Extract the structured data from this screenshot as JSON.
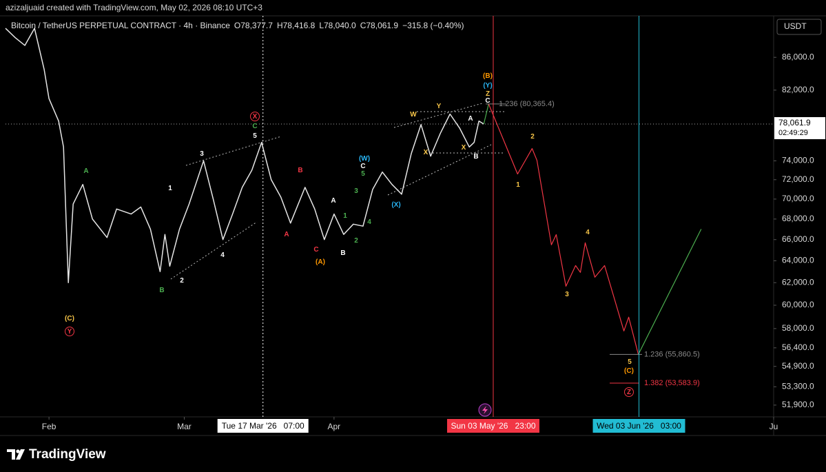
{
  "header": "azizaljuaid created with TradingView.com, May 02, 2026 08:10 UTC+3",
  "brand": "TradingView",
  "chart_data": {
    "type": "line",
    "title": "Bitcoin / TetherUS PERPETUAL CONTRACT · 4h · Binance",
    "ohlc": [
      "O78,377.7",
      "H78,416.8",
      "L78,040.0",
      "C78,061.9",
      "−315.8 (−0.40%)"
    ],
    "currency": "USDT",
    "log_scale": true,
    "grid": false,
    "xlim": [
      "2026-01-23",
      "2026-07-01"
    ],
    "ylim": [
      51020,
      91340
    ],
    "xticks": [
      {
        "value": "2026-02-01",
        "label": "Feb"
      },
      {
        "value": "2026-03-01",
        "label": "Mar"
      },
      {
        "value": "2026-04-01",
        "label": "Apr"
      },
      {
        "value": "2026-07-01",
        "label": "Ju"
      }
    ],
    "yticks": [
      {
        "value": 86000,
        "label": "86,000.0"
      },
      {
        "value": 82000,
        "label": "82,000.0"
      },
      {
        "value": 74000,
        "label": "74,000.0"
      },
      {
        "value": 72000,
        "label": "72,000.0"
      },
      {
        "value": 70000,
        "label": "70,000.0"
      },
      {
        "value": 68000,
        "label": "68,000.0"
      },
      {
        "value": 66000,
        "label": "66,000.0"
      },
      {
        "value": 64000,
        "label": "64,000.0"
      },
      {
        "value": 62000,
        "label": "62,000.0"
      },
      {
        "value": 60000,
        "label": "60,000.0"
      },
      {
        "value": 58000,
        "label": "58,000.0"
      },
      {
        "value": 56400,
        "label": "56,400.0"
      },
      {
        "value": 54900,
        "label": "54,900.0"
      },
      {
        "value": 53300,
        "label": "53,300.0"
      },
      {
        "value": 51900,
        "label": "51,900.0"
      }
    ],
    "last_price": {
      "value": 78061.9,
      "label": "78,061.9"
    },
    "countdown": "02:49:29",
    "series": [
      {
        "color": "#e6e6e6",
        "x": [
          "2026-01-23",
          "2026-01-25",
          "2026-01-27",
          "2026-01-29",
          "2026-01-31",
          "2026-02-01",
          "2026-02-03",
          "2026-02-04",
          "2026-02-05",
          "2026-02-06",
          "2026-02-08",
          "2026-02-10",
          "2026-02-13",
          "2026-02-15",
          "2026-02-18",
          "2026-02-20",
          "2026-02-22",
          "2026-02-24",
          "2026-02-25",
          "2026-02-26",
          "2026-02-28",
          "2026-03-02",
          "2026-03-05",
          "2026-03-07",
          "2026-03-09",
          "2026-03-11",
          "2026-03-13",
          "2026-03-15",
          "2026-03-17",
          "2026-03-19",
          "2026-03-21",
          "2026-03-23",
          "2026-03-26",
          "2026-03-28",
          "2026-03-30",
          "2026-04-01",
          "2026-04-03",
          "2026-04-05",
          "2026-04-07",
          "2026-04-09",
          "2026-04-11",
          "2026-04-13",
          "2026-04-15",
          "2026-04-17",
          "2026-04-19",
          "2026-04-21",
          "2026-04-23",
          "2026-04-25",
          "2026-04-27",
          "2026-04-29",
          "2026-04-30",
          "2026-05-01",
          "2026-05-02"
        ],
        "values": [
          89700,
          88500,
          87500,
          89700,
          84500,
          81000,
          78400,
          75500,
          62000,
          69500,
          71500,
          68000,
          66200,
          69000,
          68500,
          69200,
          67000,
          63000,
          66500,
          63500,
          67000,
          69500,
          74000,
          70000,
          66000,
          68500,
          71200,
          73000,
          76000,
          72000,
          70200,
          67600,
          71200,
          69000,
          66000,
          68500,
          66500,
          67500,
          67300,
          71000,
          72800,
          71500,
          70500,
          74800,
          78000,
          74500,
          77000,
          79200,
          77600,
          75500,
          76000,
          78400,
          78061.9
        ]
      },
      {
        "color": "#4caf50",
        "x": [
          "2026-05-02",
          "2026-05-03"
        ],
        "values": [
          78061.9,
          80365.4
        ]
      },
      {
        "color": "#f23645",
        "x": [
          "2026-05-03",
          "2026-05-09",
          "2026-05-12",
          "2026-05-13",
          "2026-05-16",
          "2026-05-17",
          "2026-05-19",
          "2026-05-21",
          "2026-05-22",
          "2026-05-23",
          "2026-05-25",
          "2026-05-27",
          "2026-05-31",
          "2026-06-01",
          "2026-06-03"
        ],
        "values": [
          80365.4,
          72600,
          75330,
          74050,
          65500,
          66480,
          61680,
          63560,
          62930,
          65690,
          62490,
          63560,
          57800,
          58970,
          55860.5
        ]
      },
      {
        "color": "#4caf50",
        "x": [
          "2026-06-03",
          "2026-06-16"
        ],
        "values": [
          55860.5,
          67010
        ]
      }
    ],
    "fib_levels": [
      {
        "value": 80365.4,
        "label": "1.236 (80,365.4)",
        "color": "#8a8a8a"
      },
      {
        "value": 55860.5,
        "label": "1.236 (55,860.5)",
        "color": "#8a8a8a"
      },
      {
        "value": 53583.9,
        "label": "1.382 (53,583.9)",
        "color": "#f23645"
      }
    ],
    "markers": [
      {
        "x": "2026-03-17T07:00",
        "label": "Tue 17 Mar '26   07:00",
        "color": "#ffffff"
      },
      {
        "x": "2026-05-03T23:00",
        "label": "Sun 03 May '26   23:00",
        "color": "#f23645"
      },
      {
        "x": "2026-06-03T03:00",
        "label": "Wed 03 Jun '26   03:00",
        "color": "#22bcd3"
      }
    ],
    "wave_labels": [
      {
        "text": "(C)",
        "color": "#f7c548"
      },
      {
        "text": "Y",
        "color": "#f23645"
      },
      {
        "text": "A",
        "color": "#4caf50"
      },
      {
        "text": "B",
        "color": "#4caf50"
      },
      {
        "text": "1",
        "color": "#ffffff"
      },
      {
        "text": "2",
        "color": "#ffffff"
      },
      {
        "text": "3",
        "color": "#ffffff"
      },
      {
        "text": "4",
        "color": "#ffffff"
      },
      {
        "text": "5",
        "color": "#ffffff"
      },
      {
        "text": "C",
        "color": "#4caf50"
      },
      {
        "text": "X",
        "color": "#f23645"
      },
      {
        "text": "B",
        "color": "#f23645"
      },
      {
        "text": "A",
        "color": "#f23645"
      },
      {
        "text": "C",
        "color": "#f23645"
      },
      {
        "text": "(A)",
        "color": "#ff9800"
      },
      {
        "text": "A",
        "color": "#ffffff"
      },
      {
        "text": "B",
        "color": "#ffffff"
      },
      {
        "text": "1",
        "color": "#4caf50"
      },
      {
        "text": "2",
        "color": "#4caf50"
      },
      {
        "text": "3",
        "color": "#4caf50"
      },
      {
        "text": "4",
        "color": "#4caf50"
      },
      {
        "text": "5",
        "color": "#4caf50"
      },
      {
        "text": "C",
        "color": "#ffffff"
      },
      {
        "text": "(W)",
        "color": "#29b6f6"
      },
      {
        "text": "(X)",
        "color": "#29b6f6"
      },
      {
        "text": "W",
        "color": "#f7c548"
      },
      {
        "text": "Y",
        "color": "#f7c548"
      },
      {
        "text": "X",
        "color": "#f7c548"
      },
      {
        "text": "X",
        "color": "#f7c548"
      },
      {
        "text": "A",
        "color": "#ffffff"
      },
      {
        "text": "B",
        "color": "#ffffff"
      },
      {
        "text": "(B)",
        "color": "#ff9800"
      },
      {
        "text": "(Y)",
        "color": "#29b6f6"
      },
      {
        "text": "Z",
        "color": "#f7c548"
      },
      {
        "text": "C",
        "color": "#ffffff"
      },
      {
        "text": "1",
        "color": "#f7c548"
      },
      {
        "text": "2",
        "color": "#f7c548"
      },
      {
        "text": "3",
        "color": "#f7c548"
      },
      {
        "text": "4",
        "color": "#f7c548"
      },
      {
        "text": "5",
        "color": "#f7c548"
      },
      {
        "text": "(C)",
        "color": "#ff9800"
      },
      {
        "text": "Z",
        "color": "#f23645"
      }
    ]
  }
}
